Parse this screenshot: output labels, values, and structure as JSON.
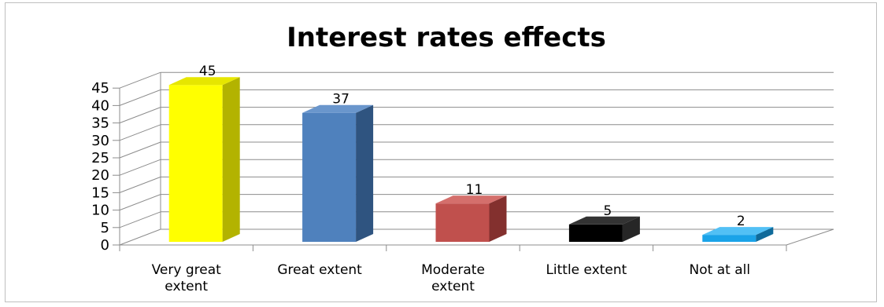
{
  "chart_data": {
    "type": "bar",
    "title": "Interest rates effects",
    "categories": [
      "Very great extent",
      "Great extent",
      "Moderate extent",
      "Little extent",
      "Not at all"
    ],
    "category_lines": [
      [
        "Very great",
        "extent"
      ],
      [
        "Great extent"
      ],
      [
        "Moderate",
        "extent"
      ],
      [
        "Little extent"
      ],
      [
        "Not at all"
      ]
    ],
    "values": [
      45,
      37,
      11,
      5,
      2
    ],
    "colors": [
      "#ffff00",
      "#4f81bd",
      "#c0504d",
      "#000000",
      "#1aa3e8"
    ],
    "side_colors": [
      "#b3b300",
      "#2f5480",
      "#83302e",
      "#262626",
      "#0f6a9a"
    ],
    "top_colors": [
      "#e6e600",
      "#6a96cc",
      "#d46f6c",
      "#333333",
      "#52c0f5"
    ],
    "yticks": [
      0,
      5,
      10,
      15,
      20,
      25,
      30,
      35,
      40,
      45
    ],
    "ylim": [
      0,
      45
    ],
    "grid": true,
    "style": "3d-column",
    "legend": "none"
  }
}
